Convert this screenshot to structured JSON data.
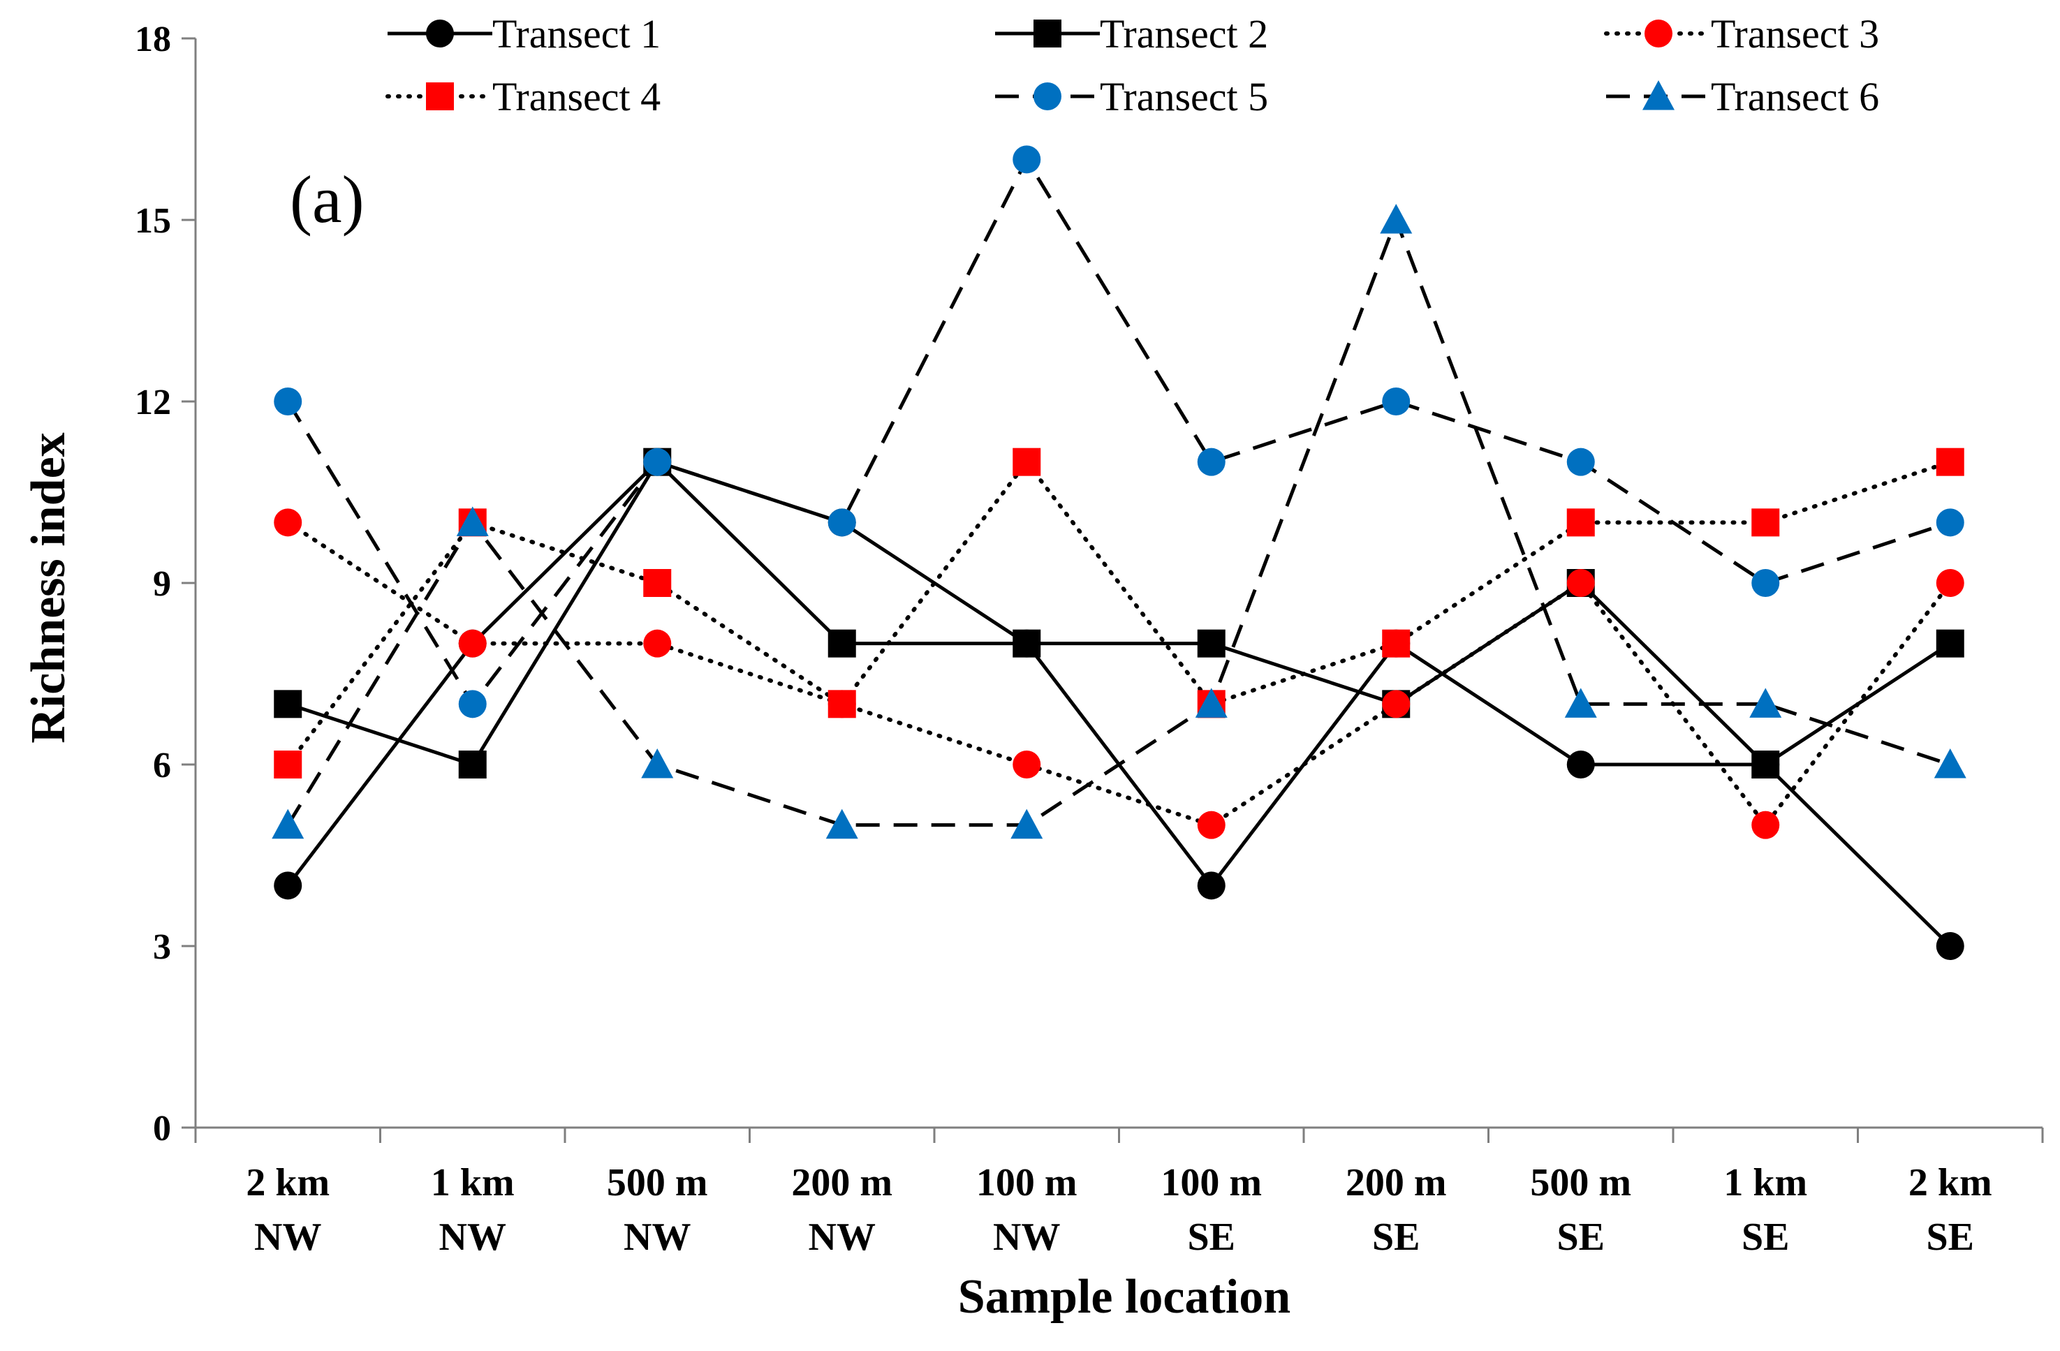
{
  "chart_data": {
    "type": "line",
    "panel_label": "(a)",
    "xlabel": "Sample location",
    "ylabel": "Richness index",
    "ylim": [
      0,
      18
    ],
    "yticks": [
      "0",
      "3",
      "6",
      "9",
      "12",
      "15",
      "18"
    ],
    "categories": [
      {
        "top": "2 km",
        "bottom": "NW"
      },
      {
        "top": "1 km",
        "bottom": "NW"
      },
      {
        "top": "500 m",
        "bottom": "NW"
      },
      {
        "top": "200 m",
        "bottom": "NW"
      },
      {
        "top": "100 m",
        "bottom": "NW"
      },
      {
        "top": "100 m",
        "bottom": "SE"
      },
      {
        "top": "200 m",
        "bottom": "SE"
      },
      {
        "top": "500 m",
        "bottom": "SE"
      },
      {
        "top": "1 km",
        "bottom": "SE"
      },
      {
        "top": "2 km",
        "bottom": "SE"
      }
    ],
    "legend_position": "top",
    "series": [
      {
        "name": "Transect 1",
        "color": "#000000",
        "marker": "circle",
        "line": "solid",
        "values": [
          4,
          8,
          11,
          10,
          8,
          4,
          8,
          6,
          6,
          3
        ]
      },
      {
        "name": "Transect 2",
        "color": "#000000",
        "marker": "square",
        "line": "solid",
        "values": [
          7,
          6,
          11,
          8,
          8,
          8,
          7,
          9,
          6,
          8
        ]
      },
      {
        "name": "Transect 3",
        "color": "#ff0000",
        "marker": "circle",
        "line": "dotted",
        "values": [
          10,
          8,
          8,
          7,
          6,
          5,
          7,
          9,
          5,
          9
        ]
      },
      {
        "name": "Transect 4",
        "color": "#ff0000",
        "marker": "square",
        "line": "dotted",
        "values": [
          6,
          10,
          9,
          7,
          11,
          7,
          8,
          10,
          10,
          11
        ]
      },
      {
        "name": "Transect 5",
        "color": "#0070c0",
        "marker": "circle",
        "line": "dashed",
        "values": [
          12,
          7,
          11,
          10,
          16,
          11,
          12,
          11,
          9,
          10
        ]
      },
      {
        "name": "Transect 6",
        "color": "#0070c0",
        "marker": "triangle",
        "line": "dashed",
        "values": [
          5,
          10,
          6,
          5,
          5,
          7,
          15,
          7,
          7,
          6
        ]
      }
    ]
  }
}
